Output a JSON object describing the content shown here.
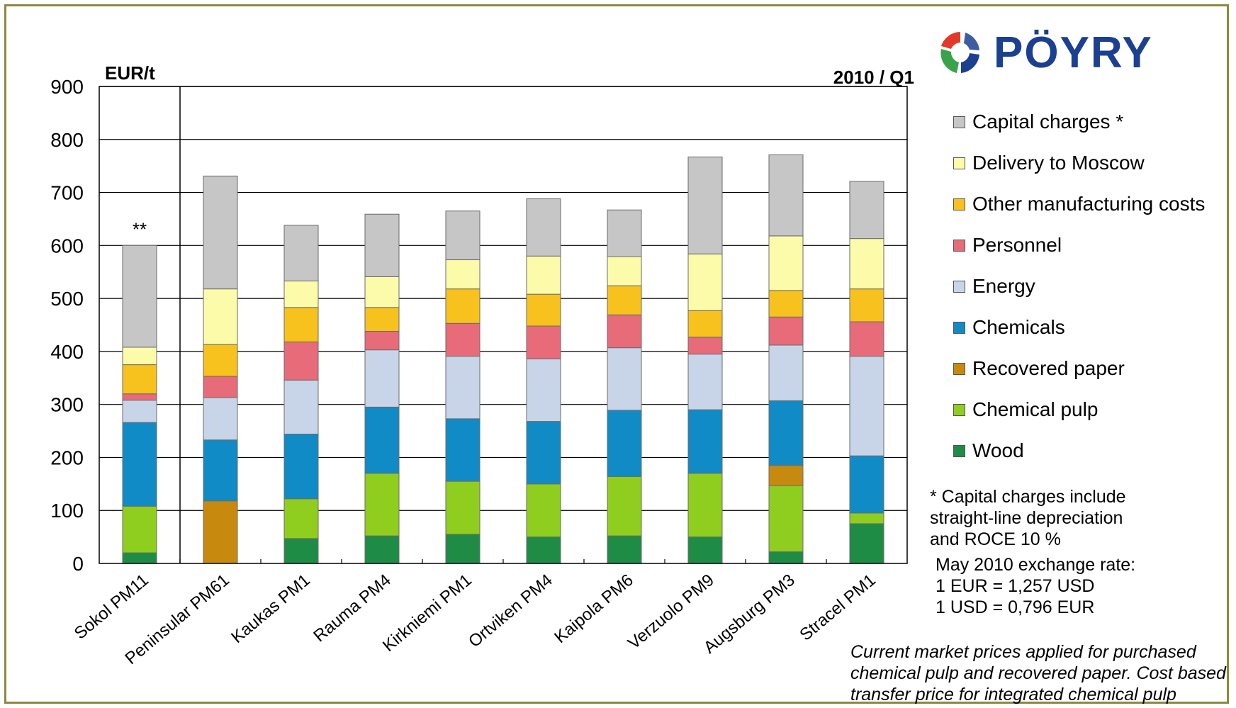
{
  "chart_data": {
    "type": "bar",
    "stacked": true,
    "ylabel": "EUR/t",
    "period_label": "2010 / Q1",
    "ylim": [
      0,
      900
    ],
    "yticks": [
      "0",
      "100",
      "200",
      "300",
      "400",
      "500",
      "600",
      "700",
      "800",
      "900"
    ],
    "grid": true,
    "legend_position": "right",
    "categories": [
      "Sokol PM11",
      "Peninsular PM61",
      "Kaukas PM1",
      "Rauma PM4",
      "Kirkniemi PM1",
      "Ortviken PM4",
      "Kaipola PM6",
      "Verzuolo PM9",
      "Augsburg PM3",
      "Stracel PM1"
    ],
    "bar_annotations": [
      {
        "category": "Sokol PM11",
        "text": "**"
      }
    ],
    "series": [
      {
        "name": "Wood",
        "color": "#1e8c45",
        "values": [
          20,
          0,
          47,
          52,
          55,
          50,
          52,
          50,
          22,
          75
        ]
      },
      {
        "name": "Chemical pulp",
        "color": "#8fce1f",
        "values": [
          88,
          0,
          75,
          118,
          100,
          100,
          112,
          120,
          125,
          20
        ]
      },
      {
        "name": "Recovered paper",
        "color": "#c88a0e",
        "values": [
          0,
          118,
          0,
          0,
          0,
          0,
          0,
          0,
          38,
          0
        ]
      },
      {
        "name": "Chemicals",
        "color": "#118bc6",
        "values": [
          158,
          115,
          122,
          125,
          118,
          118,
          125,
          120,
          122,
          108
        ]
      },
      {
        "name": "Energy",
        "color": "#c8d5e8",
        "values": [
          42,
          80,
          102,
          108,
          118,
          118,
          118,
          105,
          105,
          188
        ]
      },
      {
        "name": "Personnel",
        "color": "#e86b7a",
        "values": [
          12,
          40,
          72,
          35,
          62,
          62,
          62,
          32,
          53,
          65
        ]
      },
      {
        "name": "Other manufacturing costs",
        "color": "#f7c21e",
        "values": [
          55,
          60,
          65,
          45,
          65,
          60,
          55,
          50,
          50,
          62
        ]
      },
      {
        "name": "Delivery to Moscow",
        "color": "#fbfbaa",
        "values": [
          33,
          105,
          50,
          58,
          55,
          72,
          55,
          107,
          103,
          95
        ]
      },
      {
        "name": "Capital charges *",
        "color": "#c6c6c6",
        "values": [
          192,
          213,
          105,
          118,
          92,
          108,
          88,
          183,
          153,
          108
        ]
      }
    ],
    "legend_order": [
      "Capital charges *",
      "Delivery to Moscow",
      "Other manufacturing costs",
      "Personnel",
      "Energy",
      "Chemicals",
      "Recovered paper",
      "Chemical pulp",
      "Wood"
    ]
  },
  "logo": {
    "text": "PÖYRY",
    "icon": "poyry-swirl-icon",
    "colors": [
      "#1b3f91",
      "#e2392b",
      "#3aa34a"
    ]
  },
  "notes": {
    "capital_lines": [
      "* Capital charges include",
      "straight-line depreciation",
      "and ROCE 10 %"
    ],
    "exchange_lines": [
      "May 2010 exchange rate:",
      "1 EUR = 1,257 USD",
      "1 USD = 0,796 EUR"
    ],
    "market_lines": [
      "Current market prices applied for purchased",
      "chemical pulp and recovered paper. Cost based",
      "transfer price for integrated chemical pulp"
    ]
  }
}
